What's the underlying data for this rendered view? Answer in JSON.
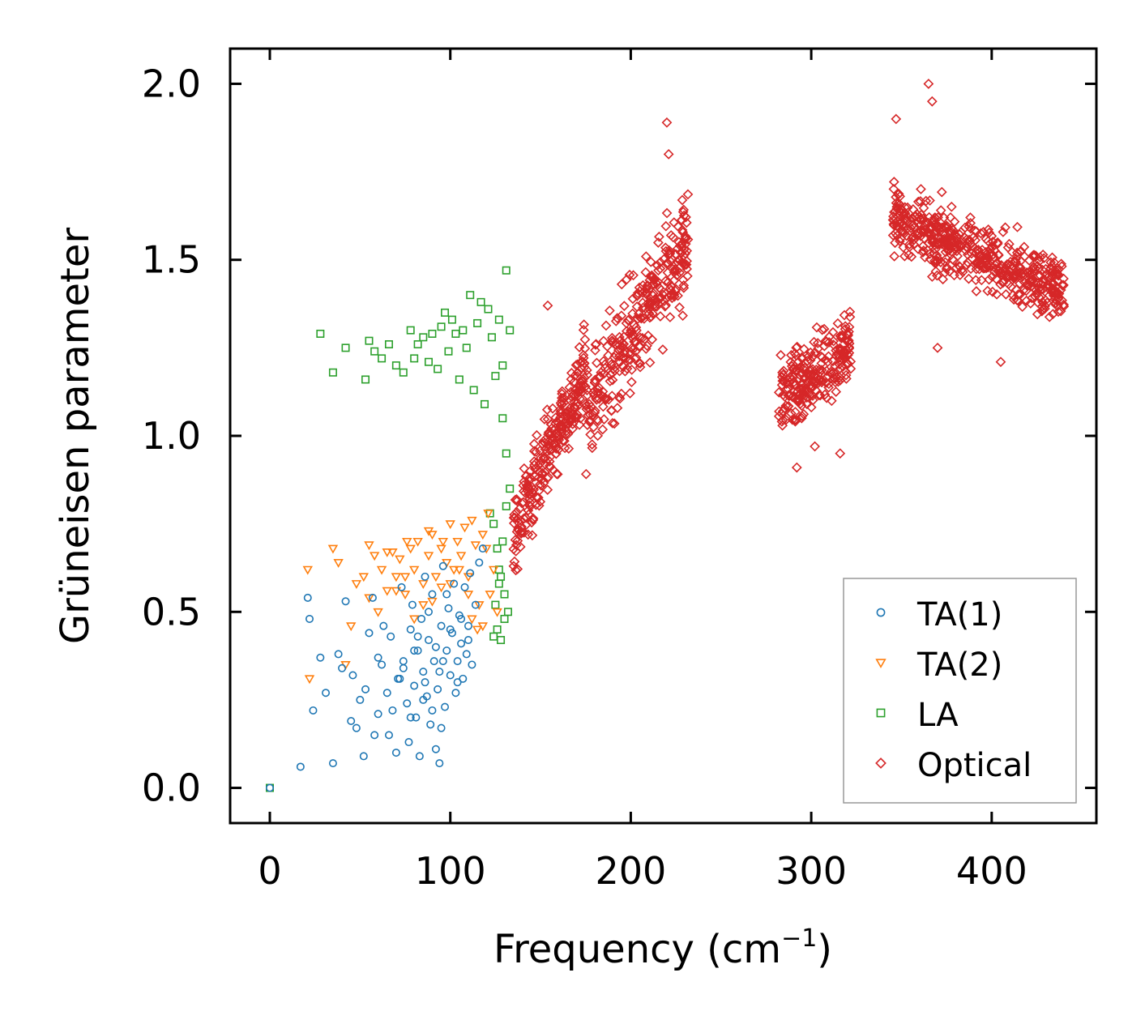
{
  "chart_data": {
    "type": "scatter",
    "title": "",
    "xlabel": "Frequency (cm",
    "xlabel_sup": "−1",
    "xlabel_end": ")",
    "ylabel": "Grüneisen parameter",
    "xlim": [
      -22,
      458
    ],
    "ylim": [
      -0.1,
      2.1
    ],
    "xticks": [
      0,
      100,
      200,
      300,
      400
    ],
    "xtick_labels": [
      "0",
      "100",
      "200",
      "300",
      "400"
    ],
    "yticks": [
      0.0,
      0.5,
      1.0,
      1.5,
      2.0
    ],
    "ytick_labels": [
      "0.0",
      "0.5",
      "1.0",
      "1.5",
      "2.0"
    ],
    "legend_position": "lower-right",
    "series": [
      {
        "name": "TA(1)",
        "marker": "circle",
        "color": "#1f77b4",
        "x": [
          0,
          17,
          21,
          22,
          24,
          28,
          31,
          35,
          38,
          40,
          42,
          45,
          46,
          48,
          50,
          52,
          53,
          55,
          57,
          58,
          60,
          62,
          63,
          65,
          67,
          68,
          70,
          71,
          73,
          74,
          76,
          77,
          78,
          79,
          80,
          81,
          82,
          83,
          84,
          85,
          86,
          87,
          88,
          89,
          90,
          91,
          92,
          93,
          94,
          95,
          96,
          97,
          98,
          99,
          100,
          101,
          102,
          103,
          104,
          105,
          106,
          107,
          108,
          109,
          110,
          111,
          112,
          114,
          116,
          118,
          60,
          72,
          85,
          95,
          100,
          88,
          78,
          66,
          92,
          104,
          98,
          82,
          74,
          90,
          96,
          106,
          110,
          94,
          86,
          80
        ],
        "y": [
          0.0,
          0.06,
          0.54,
          0.48,
          0.22,
          0.37,
          0.27,
          0.07,
          0.38,
          0.34,
          0.53,
          0.19,
          0.32,
          0.17,
          0.25,
          0.09,
          0.28,
          0.44,
          0.54,
          0.15,
          0.21,
          0.35,
          0.46,
          0.27,
          0.43,
          0.22,
          0.1,
          0.31,
          0.57,
          0.36,
          0.24,
          0.13,
          0.45,
          0.52,
          0.29,
          0.2,
          0.39,
          0.09,
          0.48,
          0.33,
          0.6,
          0.26,
          0.42,
          0.18,
          0.55,
          0.36,
          0.11,
          0.28,
          0.07,
          0.46,
          0.63,
          0.23,
          0.39,
          0.51,
          0.32,
          0.44,
          0.58,
          0.27,
          0.36,
          0.49,
          0.41,
          0.31,
          0.57,
          0.38,
          0.46,
          0.61,
          0.35,
          0.52,
          0.64,
          0.68,
          0.37,
          0.31,
          0.25,
          0.17,
          0.45,
          0.5,
          0.2,
          0.15,
          0.4,
          0.3,
          0.55,
          0.43,
          0.34,
          0.22,
          0.36,
          0.48,
          0.42,
          0.33,
          0.3,
          0.39
        ]
      },
      {
        "name": "TA(2)",
        "marker": "triangle-down",
        "color": "#ff7f0e",
        "x": [
          21,
          22,
          35,
          38,
          42,
          45,
          48,
          52,
          55,
          58,
          60,
          62,
          65,
          68,
          70,
          72,
          75,
          78,
          80,
          82,
          85,
          88,
          90,
          92,
          95,
          98,
          100,
          102,
          104,
          106,
          108,
          110,
          112,
          114,
          116,
          118,
          120,
          122,
          124,
          126,
          70,
          80,
          90,
          100,
          110,
          115,
          105,
          95,
          85,
          75,
          65,
          55,
          112,
          118,
          121,
          96,
          88,
          76
        ],
        "y": [
          0.62,
          0.31,
          0.68,
          0.64,
          0.35,
          0.46,
          0.58,
          0.6,
          0.69,
          0.66,
          0.5,
          0.62,
          0.56,
          0.67,
          0.6,
          0.65,
          0.55,
          0.68,
          0.62,
          0.7,
          0.58,
          0.66,
          0.72,
          0.6,
          0.68,
          0.64,
          0.75,
          0.62,
          0.7,
          0.66,
          0.74,
          0.6,
          0.76,
          0.69,
          0.52,
          0.72,
          0.68,
          0.55,
          0.62,
          0.5,
          0.56,
          0.48,
          0.53,
          0.58,
          0.55,
          0.45,
          0.62,
          0.57,
          0.52,
          0.6,
          0.67,
          0.54,
          0.48,
          0.46,
          0.78,
          0.7,
          0.73,
          0.7
        ]
      },
      {
        "name": "LA",
        "marker": "square",
        "color": "#2ca02c",
        "x": [
          0,
          28,
          35,
          42,
          53,
          55,
          58,
          62,
          66,
          70,
          74,
          78,
          80,
          82,
          85,
          88,
          90,
          93,
          95,
          97,
          99,
          101,
          103,
          105,
          107,
          109,
          111,
          113,
          115,
          117,
          119,
          121,
          123,
          125,
          127,
          129,
          131,
          133,
          124,
          126,
          128,
          130,
          132,
          126,
          128,
          130,
          127,
          129,
          131,
          125,
          127,
          129,
          133,
          131,
          122,
          124
        ],
        "y": [
          0.0,
          1.29,
          1.18,
          1.25,
          1.16,
          1.27,
          1.24,
          1.22,
          1.26,
          1.2,
          1.18,
          1.3,
          1.22,
          1.26,
          1.28,
          1.21,
          1.29,
          1.19,
          1.31,
          1.35,
          1.24,
          1.33,
          1.29,
          1.16,
          1.3,
          1.25,
          1.4,
          1.13,
          1.32,
          1.38,
          1.09,
          1.36,
          1.28,
          1.17,
          1.33,
          1.2,
          1.47,
          1.3,
          0.75,
          0.68,
          0.6,
          0.55,
          0.5,
          0.45,
          0.42,
          0.48,
          0.62,
          0.7,
          0.8,
          0.52,
          0.58,
          1.05,
          0.85,
          0.95,
          0.78,
          0.43
        ]
      },
      {
        "name": "Optical",
        "marker": "diamond",
        "color": "#d62728",
        "generated": true,
        "clusters": [
          {
            "x": [
              135,
              175
            ],
            "y_center_at_x0": 0.72,
            "slope": 0.012,
            "spread": 0.22,
            "count": 260
          },
          {
            "x": [
              175,
              232
            ],
            "y_center_at_x0": 1.05,
            "slope": 0.009,
            "spread": 0.3,
            "count": 320
          },
          {
            "x": [
              282,
              322
            ],
            "y_center_at_x0": 1.1,
            "slope": 0.004,
            "spread": 0.2,
            "count": 240
          },
          {
            "x": [
              345,
              440
            ],
            "y_center_at_x0": 1.62,
            "slope": -0.0022,
            "spread": 0.18,
            "count": 520
          }
        ],
        "extra_x": [
          365,
          367,
          220,
          221,
          154,
          292,
          316,
          302,
          370,
          347,
          405
        ],
        "extra_y": [
          2.0,
          1.95,
          1.89,
          1.8,
          1.37,
          0.91,
          0.95,
          0.97,
          1.25,
          1.9,
          1.21
        ]
      }
    ]
  }
}
